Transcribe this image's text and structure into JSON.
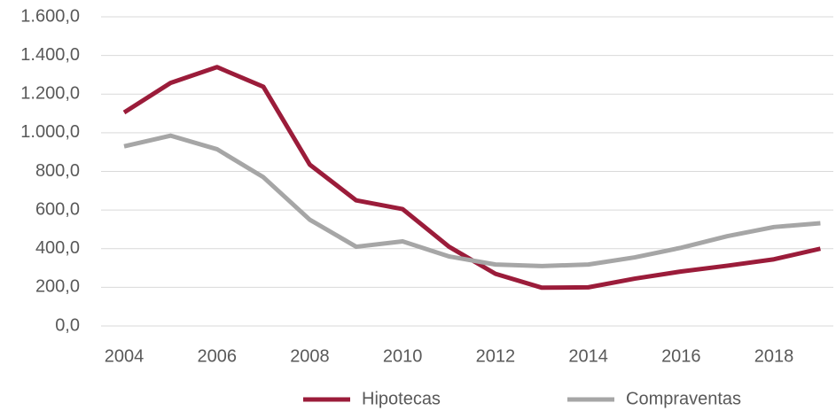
{
  "chart_data": {
    "type": "line",
    "categories": [
      "2004",
      null,
      "2006",
      null,
      "2008",
      null,
      "2010",
      null,
      "2012",
      null,
      "2014",
      null,
      "2016",
      null,
      "2018",
      null
    ],
    "series": [
      {
        "name": "Hipotecas",
        "color": "#9b1c3a",
        "values": [
          1105,
          1258,
          1340,
          1238,
          835,
          650,
          605,
          410,
          270,
          198,
          200,
          245,
          282,
          312,
          345,
          400
        ]
      },
      {
        "name": "Compraventas",
        "color": "#a6a6a6",
        "values": [
          930,
          985,
          915,
          770,
          550,
          410,
          438,
          360,
          318,
          310,
          318,
          355,
          405,
          465,
          512,
          532
        ]
      }
    ],
    "ylim": [
      0,
      1600
    ],
    "yticks": [
      {
        "value": 0,
        "label": "0,0"
      },
      {
        "value": 200,
        "label": "200,0"
      },
      {
        "value": 400,
        "label": "400,0"
      },
      {
        "value": 600,
        "label": "600,0"
      },
      {
        "value": 800,
        "label": "800,0"
      },
      {
        "value": 1000,
        "label": "1.000,0"
      },
      {
        "value": 1200,
        "label": "1.200,0"
      },
      {
        "value": 1400,
        "label": "1.400,0"
      },
      {
        "value": 1600,
        "label": "1.600,0"
      }
    ],
    "grid": true,
    "legend": "bottom"
  }
}
